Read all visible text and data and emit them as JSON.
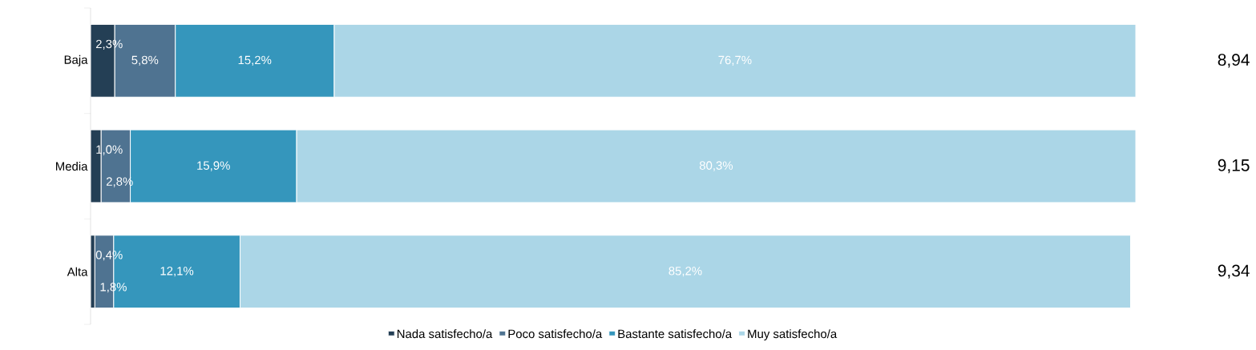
{
  "chart_data": {
    "type": "bar",
    "orientation": "horizontal",
    "stacked": true,
    "categories": [
      "Baja",
      "Media",
      "Alta"
    ],
    "series": [
      {
        "name": "Nada satisfecho/a",
        "color": "#243f55",
        "values": [
          2.3,
          1.0,
          0.4
        ],
        "value_labels": [
          "2,3%",
          "1,0%",
          "0,4%"
        ]
      },
      {
        "name": "Poco satisfecho/a",
        "color": "#4f7391",
        "values": [
          5.8,
          2.8,
          1.8
        ],
        "value_labels": [
          "5,8%",
          "2,8%",
          "1,8%"
        ]
      },
      {
        "name": "Bastante satisfecho/a",
        "color": "#3596bc",
        "values": [
          15.2,
          15.9,
          12.1
        ],
        "value_labels": [
          "15,2%",
          "15,9%",
          "12,1%"
        ]
      },
      {
        "name": "Muy satisfecho/a",
        "color": "#abd6e7",
        "values": [
          76.7,
          80.3,
          85.2
        ],
        "value_labels": [
          "76,7%",
          "80,3%",
          "85,2%"
        ]
      }
    ],
    "annotations": [
      "8,94",
      "9,15",
      "9,34"
    ],
    "legend": "bottom"
  }
}
